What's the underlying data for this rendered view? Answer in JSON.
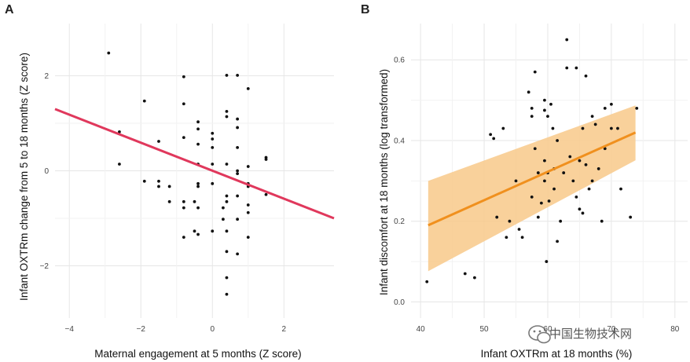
{
  "chart_data": [
    {
      "panel": "A",
      "type": "scatter",
      "xlabel": "Maternal engagement at 5 months (Z score)",
      "ylabel": "Infant OXTRm change from 5 to 18 months (Z score)",
      "xlim": [
        -4.4,
        3.4
      ],
      "ylim": [
        -3.1,
        3.1
      ],
      "xticks": [
        -4,
        -2,
        0,
        2
      ],
      "xtick_labels": [
        "−4",
        "−2",
        "0",
        "2"
      ],
      "yticks": [
        -2,
        0,
        2
      ],
      "ytick_labels": [
        "−2",
        "0",
        "2"
      ],
      "fit_line": {
        "x": [
          -4.4,
          3.4
        ],
        "y": [
          1.3,
          -1.0
        ],
        "color": "#e0385c"
      },
      "points": [
        [
          -2.9,
          2.48
        ],
        [
          -2.6,
          0.82
        ],
        [
          -2.6,
          0.14
        ],
        [
          -1.9,
          1.47
        ],
        [
          -1.9,
          -0.22
        ],
        [
          -1.5,
          0.62
        ],
        [
          -1.5,
          -0.22
        ],
        [
          -1.5,
          -0.33
        ],
        [
          -1.2,
          -0.33
        ],
        [
          -1.2,
          -0.65
        ],
        [
          -0.8,
          1.98
        ],
        [
          -0.8,
          1.41
        ],
        [
          -0.8,
          0.7
        ],
        [
          -0.8,
          -0.65
        ],
        [
          -0.8,
          -0.78
        ],
        [
          -0.8,
          -1.4
        ],
        [
          -0.5,
          -0.65
        ],
        [
          -0.5,
          -1.27
        ],
        [
          -0.4,
          1.03
        ],
        [
          -0.4,
          0.88
        ],
        [
          -0.4,
          0.56
        ],
        [
          -0.4,
          0.14
        ],
        [
          -0.4,
          -0.27
        ],
        [
          -0.4,
          -0.33
        ],
        [
          -0.4,
          -0.78
        ],
        [
          -0.4,
          -1.34
        ],
        [
          0.0,
          0.79
        ],
        [
          0.0,
          0.67
        ],
        [
          0.0,
          0.49
        ],
        [
          0.0,
          0.14
        ],
        [
          0.0,
          -0.27
        ],
        [
          0.0,
          -1.27
        ],
        [
          0.3,
          -0.78
        ],
        [
          0.3,
          -1.02
        ],
        [
          0.4,
          2.01
        ],
        [
          0.4,
          1.25
        ],
        [
          0.4,
          1.14
        ],
        [
          0.4,
          0.14
        ],
        [
          0.4,
          -0.53
        ],
        [
          0.4,
          -0.65
        ],
        [
          0.4,
          -1.27
        ],
        [
          0.4,
          -1.7
        ],
        [
          0.4,
          -2.25
        ],
        [
          0.4,
          -2.6
        ],
        [
          0.7,
          2.01
        ],
        [
          0.7,
          1.09
        ],
        [
          0.7,
          0.91
        ],
        [
          0.7,
          0.49
        ],
        [
          0.7,
          0.0
        ],
        [
          0.7,
          -0.06
        ],
        [
          0.7,
          -0.53
        ],
        [
          0.7,
          -1.02
        ],
        [
          0.7,
          -1.75
        ],
        [
          1.0,
          1.73
        ],
        [
          1.0,
          0.09
        ],
        [
          1.0,
          -0.27
        ],
        [
          1.0,
          -0.33
        ],
        [
          1.0,
          -0.72
        ],
        [
          1.0,
          -0.88
        ],
        [
          1.0,
          -1.4
        ],
        [
          1.5,
          0.28
        ],
        [
          1.5,
          0.24
        ],
        [
          1.5,
          -0.5
        ]
      ],
      "point_color": "#111111"
    },
    {
      "panel": "B",
      "type": "scatter",
      "xlabel": "Infant OXTRm at 18 months (%)",
      "ylabel": "Infant discomfort at 18 months (log transformed)",
      "xlim": [
        38.5,
        82
      ],
      "ylim": [
        -0.04,
        0.69
      ],
      "xticks": [
        40,
        50,
        60,
        70,
        80
      ],
      "xtick_labels": [
        "40",
        "50",
        "60",
        "70",
        "80"
      ],
      "yticks": [
        0.0,
        0.2,
        0.4,
        0.6
      ],
      "ytick_labels": [
        "0.0",
        "0.2",
        "0.4",
        "0.6"
      ],
      "fit_line": {
        "x": [
          41.2,
          73.8
        ],
        "y": [
          0.19,
          0.42
        ],
        "color": "#f0901e"
      },
      "confidence_band": {
        "x": [
          41.2,
          73.8
        ],
        "upper": [
          0.3,
          0.487
        ],
        "lower": [
          0.076,
          0.351
        ],
        "color": "#f8c98a"
      },
      "points": [
        [
          41.0,
          0.05
        ],
        [
          47.0,
          0.07
        ],
        [
          48.5,
          0.06
        ],
        [
          51.0,
          0.415
        ],
        [
          51.5,
          0.405
        ],
        [
          52.0,
          0.21
        ],
        [
          53.0,
          0.43
        ],
        [
          53.5,
          0.16
        ],
        [
          54.0,
          0.2
        ],
        [
          55.0,
          0.3
        ],
        [
          55.5,
          0.18
        ],
        [
          56.0,
          0.16
        ],
        [
          57.0,
          0.52
        ],
        [
          57.5,
          0.48
        ],
        [
          57.5,
          0.46
        ],
        [
          57.5,
          0.26
        ],
        [
          58.0,
          0.57
        ],
        [
          58.0,
          0.38
        ],
        [
          58.5,
          0.32
        ],
        [
          58.5,
          0.21
        ],
        [
          59.0,
          0.245
        ],
        [
          59.5,
          0.5
        ],
        [
          59.5,
          0.475
        ],
        [
          59.5,
          0.35
        ],
        [
          59.5,
          0.3
        ],
        [
          59.8,
          0.1
        ],
        [
          60.0,
          0.46
        ],
        [
          60.0,
          0.32
        ],
        [
          60.2,
          0.25
        ],
        [
          60.5,
          0.49
        ],
        [
          60.8,
          0.43
        ],
        [
          61.0,
          0.33
        ],
        [
          61.0,
          0.28
        ],
        [
          61.5,
          0.4
        ],
        [
          61.5,
          0.15
        ],
        [
          62.0,
          0.2
        ],
        [
          62.5,
          0.32
        ],
        [
          63.0,
          0.65
        ],
        [
          63.0,
          0.58
        ],
        [
          63.5,
          0.36
        ],
        [
          64.0,
          0.3
        ],
        [
          64.5,
          0.58
        ],
        [
          64.5,
          0.26
        ],
        [
          65.0,
          0.35
        ],
        [
          65.0,
          0.23
        ],
        [
          65.5,
          0.43
        ],
        [
          65.5,
          0.22
        ],
        [
          66.0,
          0.56
        ],
        [
          66.0,
          0.34
        ],
        [
          66.5,
          0.28
        ],
        [
          67.0,
          0.46
        ],
        [
          67.0,
          0.3
        ],
        [
          67.5,
          0.44
        ],
        [
          68.0,
          0.33
        ],
        [
          68.5,
          0.2
        ],
        [
          69.0,
          0.48
        ],
        [
          69.0,
          0.38
        ],
        [
          70.0,
          0.49
        ],
        [
          70.0,
          0.43
        ],
        [
          71.0,
          0.43
        ],
        [
          71.5,
          0.28
        ],
        [
          73.0,
          0.21
        ],
        [
          74.0,
          0.48
        ]
      ],
      "point_color": "#111111"
    }
  ],
  "watermark": {
    "text": "中国生物技术网"
  }
}
